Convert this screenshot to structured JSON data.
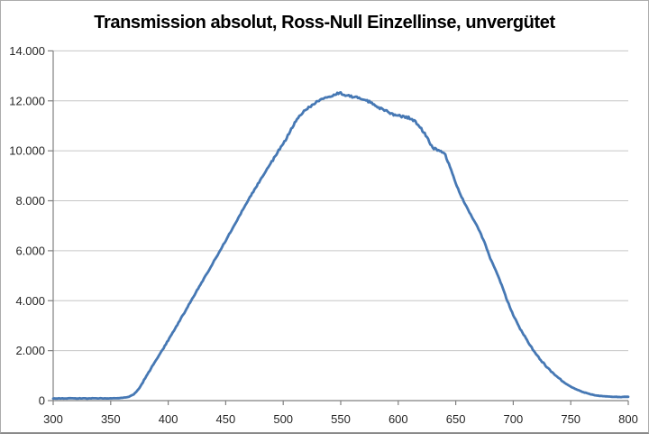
{
  "chart_data": {
    "type": "line",
    "title": "Transmission absolut, Ross-Null Einzellinse, unvergütet",
    "xlabel": "",
    "ylabel": "",
    "xlim": [
      300,
      800
    ],
    "ylim": [
      0,
      14000
    ],
    "x_ticks": [
      300,
      350,
      400,
      450,
      500,
      550,
      600,
      650,
      700,
      750,
      800
    ],
    "x_tick_labels": [
      "300",
      "350",
      "400",
      "450",
      "500",
      "550",
      "600",
      "650",
      "700",
      "750",
      "800"
    ],
    "y_ticks": [
      0,
      2000,
      4000,
      6000,
      8000,
      10000,
      12000,
      14000
    ],
    "y_tick_labels": [
      "0",
      "2.000",
      "4.000",
      "6.000",
      "8.000",
      "10.000",
      "12.000",
      "14.000"
    ],
    "grid": "horizontal",
    "legend": "none",
    "series": [
      {
        "color": "#4678B4",
        "x": [
          300,
          305,
          310,
          315,
          320,
          325,
          330,
          335,
          340,
          345,
          350,
          355,
          360,
          365,
          370,
          375,
          380,
          385,
          390,
          395,
          400,
          405,
          410,
          415,
          420,
          425,
          430,
          435,
          440,
          445,
          450,
          455,
          460,
          465,
          470,
          475,
          480,
          485,
          490,
          495,
          500,
          505,
          510,
          515,
          520,
          525,
          530,
          535,
          540,
          545,
          550,
          555,
          560,
          565,
          570,
          575,
          580,
          585,
          590,
          595,
          600,
          605,
          610,
          615,
          620,
          625,
          630,
          635,
          640,
          645,
          650,
          655,
          660,
          665,
          670,
          675,
          680,
          685,
          690,
          695,
          700,
          705,
          710,
          715,
          720,
          725,
          730,
          735,
          740,
          745,
          750,
          755,
          760,
          765,
          770,
          775,
          780,
          785,
          790,
          795,
          800
        ],
        "y": [
          85,
          92,
          86,
          95,
          88,
          93,
          87,
          96,
          89,
          94,
          91,
          97,
          108,
          140,
          240,
          500,
          900,
          1280,
          1660,
          2030,
          2420,
          2800,
          3200,
          3600,
          4000,
          4400,
          4800,
          5200,
          5600,
          6000,
          6400,
          6820,
          7240,
          7650,
          8060,
          8440,
          8820,
          9190,
          9560,
          9930,
          10280,
          10700,
          11100,
          11450,
          11660,
          11830,
          11980,
          12100,
          12190,
          12260,
          12300,
          12230,
          12160,
          12120,
          12080,
          11960,
          11810,
          11690,
          11575,
          11455,
          11405,
          11370,
          11310,
          11155,
          10890,
          10540,
          10120,
          9995,
          9940,
          9360,
          8700,
          8160,
          7715,
          7270,
          6860,
          6330,
          5690,
          5180,
          4620,
          3980,
          3420,
          2950,
          2570,
          2190,
          1840,
          1560,
          1300,
          1080,
          880,
          700,
          560,
          450,
          350,
          285,
          225,
          188,
          167,
          156,
          150,
          148,
          150
        ]
      }
    ]
  },
  "colors": {
    "background": "#FFFFFF",
    "series_line": "#4678B4",
    "gridline": "#C6C6C6",
    "axis": "#808080",
    "tick_label": "#262626",
    "title_text": "#000000",
    "outer_border": "#ABABAB"
  }
}
